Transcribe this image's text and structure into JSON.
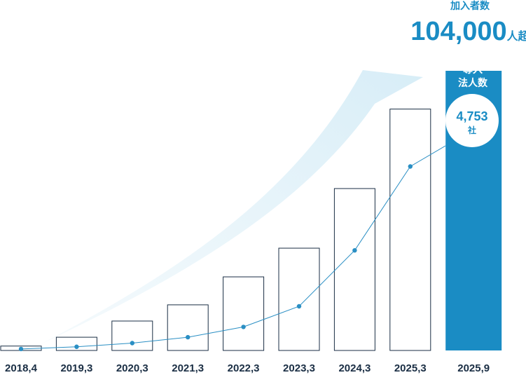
{
  "chart_data": {
    "type": "bar",
    "categories": [
      "2018,4",
      "2019,3",
      "2020,3",
      "2021,3",
      "2022,3",
      "2023,3",
      "2024,3",
      "2025,3",
      "2025,9"
    ],
    "bar_values": [
      6,
      18,
      40,
      62,
      100,
      139,
      220,
      328,
      380
    ],
    "line_values": [
      2,
      5,
      10,
      18,
      32,
      60,
      136,
      250,
      292
    ],
    "ylim": [
      0,
      400
    ],
    "highlight_index": 8,
    "header": {
      "label": "加入者数",
      "value": "104,000",
      "unit": "人超"
    },
    "bar_label": [
      "導入",
      "法人数"
    ],
    "badge": {
      "value": "4,753",
      "unit": "社"
    }
  },
  "colors": {
    "accent": "#1a8cc4",
    "line": "#2a8fc4",
    "arrow": "#dff0f8",
    "bar_outline": "#1a2e44",
    "tick_text": "#1a2e44"
  }
}
